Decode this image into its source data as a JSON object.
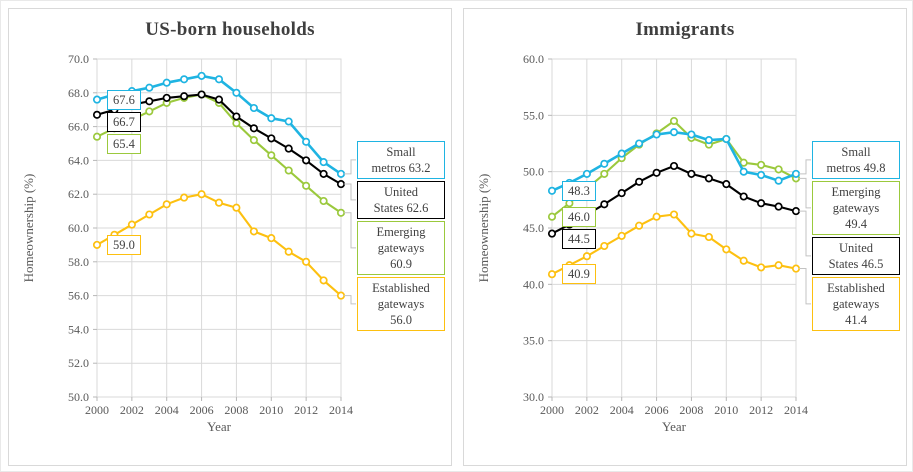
{
  "chart_data": [
    {
      "type": "line",
      "title": "US-born households",
      "xlabel": "Year",
      "ylabel": "Homeownership (%)",
      "x": [
        2000,
        2001,
        2002,
        2003,
        2004,
        2005,
        2006,
        2007,
        2008,
        2009,
        2010,
        2011,
        2012,
        2013,
        2014
      ],
      "xticks": [
        2000,
        2002,
        2004,
        2006,
        2008,
        2010,
        2012,
        2014
      ],
      "ylim": [
        50.0,
        70.0
      ],
      "ytick_step": 2.0,
      "grid": true,
      "series": [
        {
          "name": "Small metros",
          "color": "#1fb4e2",
          "values": [
            67.6,
            67.9,
            68.1,
            68.3,
            68.6,
            68.8,
            69.0,
            68.8,
            68.0,
            67.1,
            66.5,
            66.3,
            65.1,
            63.9,
            63.2
          ],
          "start_label": "67.6",
          "end_label_lines": [
            "Small",
            "metros 63.2"
          ]
        },
        {
          "name": "United States",
          "color": "#000000",
          "values": [
            66.7,
            67.0,
            67.3,
            67.5,
            67.7,
            67.8,
            67.9,
            67.6,
            66.6,
            65.9,
            65.3,
            64.7,
            64.0,
            63.2,
            62.6
          ],
          "start_label": "66.7",
          "end_label_lines": [
            "United",
            "States 62.6"
          ]
        },
        {
          "name": "Emerging gateways",
          "color": "#9bc93d",
          "values": [
            65.4,
            65.9,
            66.4,
            66.9,
            67.4,
            67.7,
            67.9,
            67.4,
            66.2,
            65.2,
            64.3,
            63.4,
            62.5,
            61.6,
            60.9
          ],
          "start_label": "65.4",
          "end_label_lines": [
            "Emerging",
            "gateways",
            "60.9"
          ]
        },
        {
          "name": "Established gateways",
          "color": "#fdc010",
          "values": [
            59.0,
            59.6,
            60.2,
            60.8,
            61.4,
            61.8,
            62.0,
            61.5,
            61.2,
            59.8,
            59.4,
            58.6,
            58.0,
            56.9,
            56.0
          ],
          "start_label": "59.0",
          "end_label_lines": [
            "Established",
            "gateways",
            "56.0"
          ]
        }
      ]
    },
    {
      "type": "line",
      "title": "Immigrants",
      "xlabel": "Year",
      "ylabel": "Homeownership (%)",
      "x": [
        2000,
        2001,
        2002,
        2003,
        2004,
        2005,
        2006,
        2007,
        2008,
        2009,
        2010,
        2011,
        2012,
        2013,
        2014
      ],
      "xticks": [
        2000,
        2002,
        2004,
        2006,
        2008,
        2010,
        2012,
        2014
      ],
      "ylim": [
        30.0,
        60.0
      ],
      "ytick_step": 5.0,
      "grid": true,
      "series": [
        {
          "name": "Small metros",
          "color": "#1fb4e2",
          "values": [
            48.3,
            49.0,
            49.8,
            50.7,
            51.6,
            52.5,
            53.3,
            53.5,
            53.3,
            52.8,
            52.9,
            50.0,
            49.7,
            49.2,
            49.8
          ],
          "start_label": "48.3",
          "end_label_lines": [
            "Small",
            "metros 49.8"
          ]
        },
        {
          "name": "Emerging gateways",
          "color": "#9bc93d",
          "values": [
            46.0,
            47.2,
            48.5,
            49.8,
            51.2,
            52.4,
            53.4,
            54.5,
            53.0,
            52.4,
            52.9,
            50.8,
            50.6,
            50.2,
            49.4
          ],
          "start_label": "46.0",
          "end_label_lines": [
            "Emerging",
            "gateways",
            "49.4"
          ]
        },
        {
          "name": "United States",
          "color": "#000000",
          "values": [
            44.5,
            45.3,
            46.2,
            47.1,
            48.1,
            49.1,
            49.9,
            50.5,
            49.8,
            49.4,
            48.9,
            47.8,
            47.2,
            46.9,
            46.5
          ],
          "start_label": "44.5",
          "end_label_lines": [
            "United",
            "States 46.5"
          ]
        },
        {
          "name": "Established gateways",
          "color": "#fdc010",
          "values": [
            40.9,
            41.7,
            42.5,
            43.4,
            44.3,
            45.2,
            46.0,
            46.2,
            44.5,
            44.2,
            43.1,
            42.1,
            41.5,
            41.7,
            41.4
          ],
          "start_label": "40.9",
          "end_label_lines": [
            "Established",
            "gateways",
            "41.4"
          ]
        }
      ]
    }
  ]
}
